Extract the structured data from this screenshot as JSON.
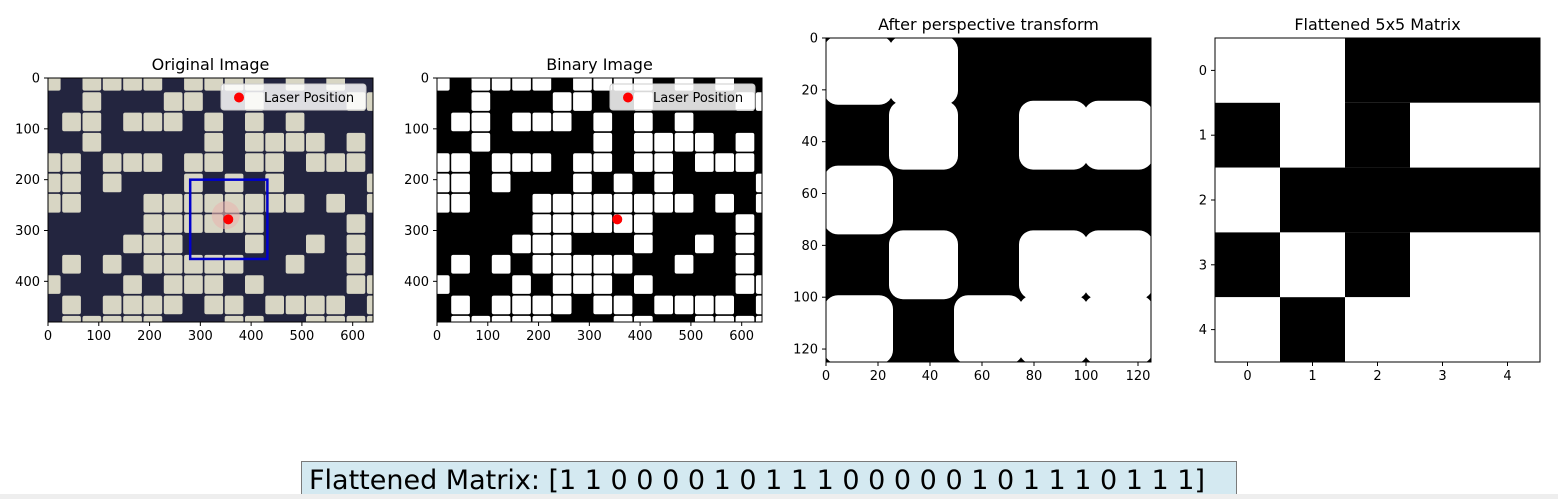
{
  "chart_data": [
    {
      "type": "image",
      "title": "Original Image",
      "xlim": [
        0,
        640
      ],
      "ylim": [
        480,
        0
      ],
      "xticks": [
        0,
        100,
        200,
        300,
        400,
        500,
        600
      ],
      "yticks": [
        0,
        100,
        200,
        300,
        400
      ],
      "image_kind": "photo",
      "legend": {
        "label": "Laser Position",
        "placement": "top-right"
      },
      "points": [
        {
          "x": 355,
          "y": 278,
          "color": "#ff0000"
        }
      ],
      "rectangles": [
        {
          "x0": 280,
          "y0": 200,
          "x1": 432,
          "y1": 356,
          "color": "#0000cc"
        }
      ]
    },
    {
      "type": "image",
      "title": "Binary Image",
      "xlim": [
        0,
        640
      ],
      "ylim": [
        480,
        0
      ],
      "xticks": [
        0,
        100,
        200,
        300,
        400,
        500,
        600
      ],
      "yticks": [
        0,
        100,
        200,
        300,
        400
      ],
      "image_kind": "binary",
      "legend": {
        "label": "Laser Position",
        "placement": "top-right"
      },
      "points": [
        {
          "x": 355,
          "y": 278,
          "color": "#ff0000"
        }
      ]
    },
    {
      "type": "image",
      "title": "After perspective transform",
      "xlim": [
        0,
        125
      ],
      "ylim": [
        125,
        0
      ],
      "xticks": [
        0,
        20,
        40,
        60,
        80,
        100,
        120
      ],
      "yticks": [
        0,
        20,
        40,
        60,
        80,
        100,
        120
      ],
      "image_kind": "warped",
      "cells": [
        [
          1,
          1,
          0,
          0,
          0
        ],
        [
          0,
          1,
          0,
          1,
          1
        ],
        [
          1,
          0,
          0,
          0,
          0
        ],
        [
          0,
          1,
          0,
          1,
          1
        ],
        [
          1,
          0,
          1,
          1,
          1
        ]
      ]
    },
    {
      "type": "heatmap",
      "title": "Flattened 5x5 Matrix",
      "xlim": [
        -0.5,
        4.5
      ],
      "ylim": [
        4.5,
        -0.5
      ],
      "xticks": [
        0,
        1,
        2,
        3,
        4
      ],
      "yticks": [
        0,
        1,
        2,
        3,
        4
      ],
      "colormap": {
        "0": "#000000",
        "1": "#ffffff"
      },
      "cells": [
        [
          1,
          1,
          0,
          0,
          0
        ],
        [
          0,
          1,
          0,
          1,
          1
        ],
        [
          1,
          0,
          0,
          0,
          0
        ],
        [
          0,
          1,
          0,
          1,
          1
        ],
        [
          1,
          0,
          1,
          1,
          1
        ]
      ]
    }
  ],
  "summary": {
    "text": "Flattened Matrix: [1 1 0 0 0 0 1 0 1 1 1 0 0 0 0 0 1 0 1 1 1 0 1 1 1]"
  }
}
